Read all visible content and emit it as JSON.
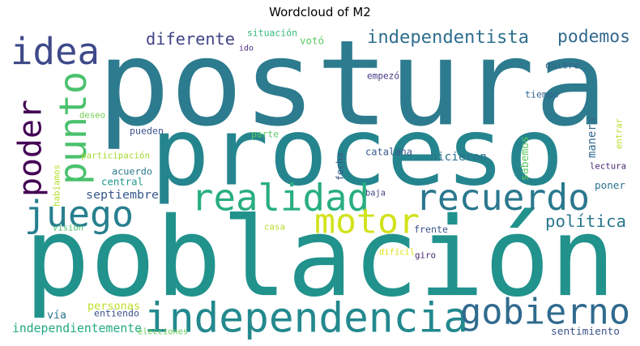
{
  "title": "Wordcloud of M2",
  "words": [
    {
      "text": "postura",
      "color": "#2d7b8e"
    },
    {
      "text": "población",
      "color": "#21928c"
    },
    {
      "text": "proceso",
      "color": "#25858e"
    },
    {
      "text": "independencia",
      "color": "#23898e"
    },
    {
      "text": "gobierno",
      "color": "#306a8e"
    },
    {
      "text": "recuerdo",
      "color": "#2a788e"
    },
    {
      "text": "realidad",
      "color": "#28ae80"
    },
    {
      "text": "juego",
      "color": "#277f8e"
    },
    {
      "text": "motor",
      "color": "#d2e21b"
    },
    {
      "text": "idea",
      "color": "#3e4989"
    },
    {
      "text": "punto",
      "color": "#4ac16d"
    },
    {
      "text": "poder",
      "color": "#440154"
    },
    {
      "text": "independentista",
      "color": "#2e6f8e"
    },
    {
      "text": "diferente",
      "color": "#414487"
    },
    {
      "text": "podemos",
      "color": "#31688e"
    },
    {
      "text": "política",
      "color": "#2a788e"
    },
    {
      "text": "independientemente",
      "color": "#23a983"
    },
    {
      "text": "sentimiento",
      "color": "#3b528b"
    },
    {
      "text": "hicieron",
      "color": "#2c728e"
    },
    {
      "text": "septiembre",
      "color": "#38598c"
    },
    {
      "text": "catalana",
      "color": "#38598c"
    },
    {
      "text": "personas",
      "color": "#bddf26"
    },
    {
      "text": "situación",
      "color": "#35b779"
    },
    {
      "text": "votó",
      "color": "#5ec962"
    },
    {
      "text": "ido",
      "color": "#472d7b"
    },
    {
      "text": "quiere",
      "color": "#33638d"
    },
    {
      "text": "tiempo",
      "color": "#33638d"
    },
    {
      "text": "empezó",
      "color": "#443983"
    },
    {
      "text": "deseo",
      "color": "#73d056"
    },
    {
      "text": "pueden",
      "color": "#3b528b"
    },
    {
      "text": "parte",
      "color": "#5ec962"
    },
    {
      "text": "participación",
      "color": "#a5db36"
    },
    {
      "text": "acuerdo",
      "color": "#2a788e"
    },
    {
      "text": "central",
      "color": "#1f988b"
    },
    {
      "text": "manera",
      "color": "#31688e"
    },
    {
      "text": "entrar",
      "color": "#b5de2b"
    },
    {
      "text": "lectura",
      "color": "#482475"
    },
    {
      "text": "poner",
      "color": "#2c728e"
    },
    {
      "text": "sabemos",
      "color": "#5ec962"
    },
    {
      "text": "fecha",
      "color": "#38598c"
    },
    {
      "text": "baja",
      "color": "#404688"
    },
    {
      "text": "habíamos",
      "color": "#b5de2b"
    },
    {
      "text": "frente",
      "color": "#3b528b"
    },
    {
      "text": "casa",
      "color": "#b5de2b"
    },
    {
      "text": "visión",
      "color": "#4ac16d"
    },
    {
      "text": "difícil",
      "color": "#dde318"
    },
    {
      "text": "giro",
      "color": "#482475"
    },
    {
      "text": "vía",
      "color": "#2a788e"
    },
    {
      "text": "entiendo",
      "color": "#3b528b"
    },
    {
      "text": "elecciones",
      "color": "#6ccd5a"
    }
  ]
}
